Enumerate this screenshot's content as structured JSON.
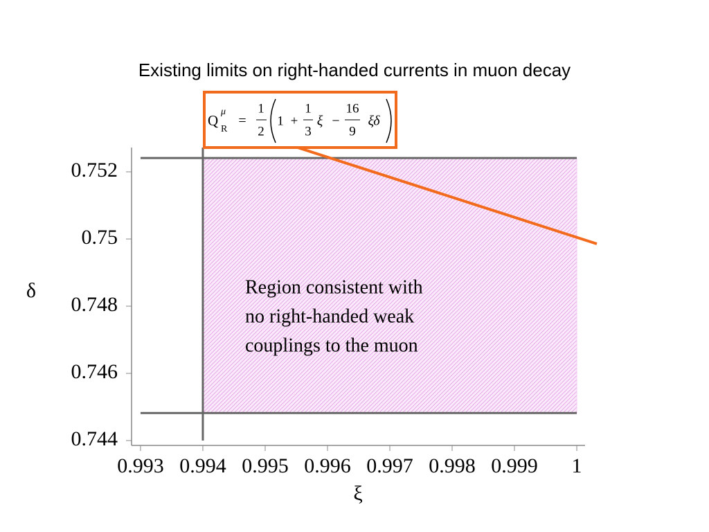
{
  "chart_data": {
    "type": "region",
    "title": "Existing limits on right-handed currents in muon decay",
    "x_label": "ξ",
    "y_label": "δ",
    "xlim": [
      0.992856,
      1.000133
    ],
    "ylim": [
      0.743856,
      0.752722
    ],
    "xticks": [
      0.993,
      0.994,
      0.995,
      0.996,
      0.997,
      0.998,
      0.999,
      1
    ],
    "yticks": [
      0.744,
      0.746,
      0.748,
      0.75,
      0.752
    ],
    "region": {
      "x": [
        0.994,
        1
      ],
      "y": [
        0.74482,
        0.75241
      ],
      "color": "#f3cdf3"
    },
    "limit_line_color": "#666666",
    "annotation": [
      "Region consistent with",
      "no right-handed weak",
      "couplings to the muon"
    ],
    "formula": {
      "symbol": "Q",
      "sub": "R",
      "sup": "μ",
      "eq": "=",
      "half": [
        "1",
        "2"
      ],
      "one": "1",
      "plus": "+",
      "third": [
        "1",
        "3"
      ],
      "xi": "ξ",
      "minus": "−",
      "frac": [
        "16",
        "9"
      ],
      "xidelta": "ξδ",
      "box_color": "#f26b1d"
    }
  }
}
